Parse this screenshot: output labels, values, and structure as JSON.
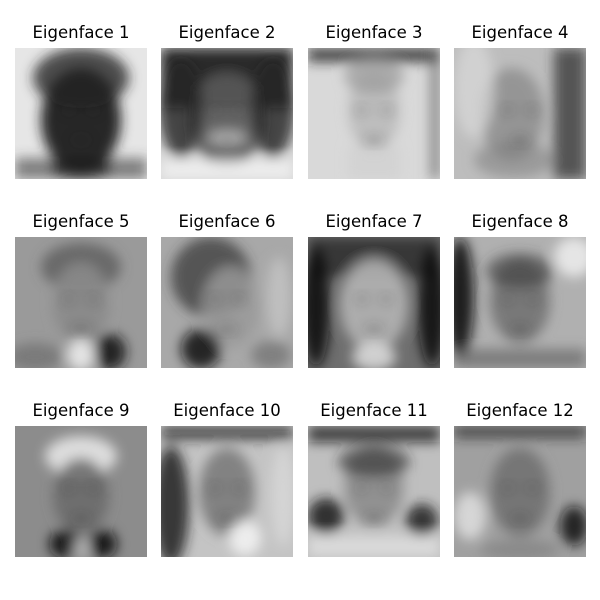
{
  "figure": {
    "rows": 3,
    "cols": 4,
    "panels": [
      {
        "title": "Eigenface 1",
        "tone": "dark-face-light-border",
        "variant": 1
      },
      {
        "title": "Eigenface 2",
        "tone": "smiling-face-dark-hair",
        "variant": 2
      },
      {
        "title": "Eigenface 3",
        "tone": "light-face-dark-edges",
        "variant": 3
      },
      {
        "title": "Eigenface 4",
        "tone": "faint-face-right-shadow",
        "variant": 4
      },
      {
        "title": "Eigenface 5",
        "tone": "gray-face-dark-shoulders",
        "variant": 5
      },
      {
        "title": "Eigenface 6",
        "tone": "gray-face-dark-left",
        "variant": 6
      },
      {
        "title": "Eigenface 7",
        "tone": "bright-face-dark-corners",
        "variant": 7
      },
      {
        "title": "Eigenface 8",
        "tone": "gray-face-dark-left-edge",
        "variant": 8
      },
      {
        "title": "Eigenface 9",
        "tone": "light-hair-gray-face",
        "variant": 9
      },
      {
        "title": "Eigenface 10",
        "tone": "light-left-dark-right",
        "variant": 10
      },
      {
        "title": "Eigenface 11",
        "tone": "dark-top-light-cheeks",
        "variant": 11
      },
      {
        "title": "Eigenface 12",
        "tone": "textured-dark-edges",
        "variant": 12
      }
    ]
  }
}
